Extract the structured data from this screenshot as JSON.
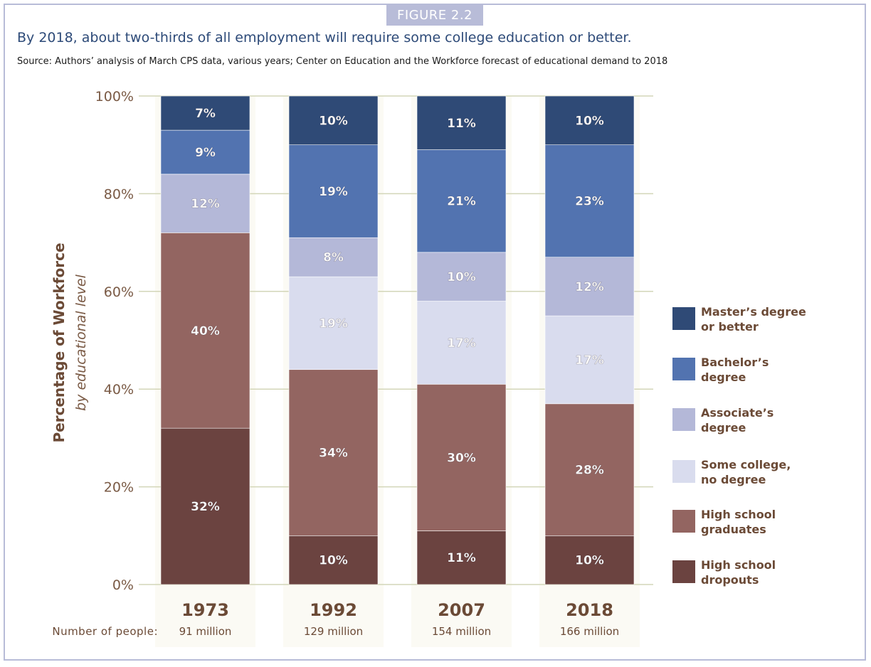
{
  "figure_tag": "FIGURE 2.2",
  "headline": "By 2018, about two-thirds of all employment will require some college education or better.",
  "source": "Source: Authors’ analysis of March CPS data, various years; Center on Education and the Workforce forecast of educational demand to 2018",
  "chart_data": {
    "type": "bar",
    "stacked": true,
    "ylabel": "Percentage of Workforce",
    "ylabel_sub": "by educational level",
    "ylim": [
      0,
      100
    ],
    "yticks": [
      "0%",
      "20%",
      "40%",
      "60%",
      "80%",
      "100%"
    ],
    "ytick_values": [
      0,
      20,
      40,
      60,
      80,
      100
    ],
    "grid": true,
    "legend_position": "right",
    "categories": [
      "1973",
      "1992",
      "2007",
      "2018"
    ],
    "people_label": "Number of people:",
    "people": [
      "91 million",
      "129 million",
      "154 million",
      "166 million"
    ],
    "series": [
      {
        "name": "High school\ndropouts",
        "color": "#6b4340",
        "values": [
          32,
          10,
          11,
          10
        ]
      },
      {
        "name": "High school\ngraduates",
        "color": "#936561",
        "values": [
          40,
          34,
          30,
          28
        ]
      },
      {
        "name": "Some college,\nno degree",
        "color": "#d9dcee",
        "values": [
          0,
          19,
          17,
          17
        ]
      },
      {
        "name": "Associate’s\ndegree",
        "color": "#b4b8d8",
        "values": [
          12,
          8,
          10,
          12
        ]
      },
      {
        "name": "Bachelor’s\ndegree",
        "color": "#5273b0",
        "values": [
          9,
          19,
          21,
          23
        ]
      },
      {
        "name": "Master’s degree\nor better",
        "color": "#2f4a76",
        "values": [
          7,
          10,
          11,
          10
        ]
      }
    ],
    "tops": [
      [
        32,
        72,
        72,
        84,
        93,
        100
      ],
      [
        10,
        44,
        63,
        71,
        90,
        100
      ],
      [
        11,
        41,
        58,
        68,
        89,
        100
      ],
      [
        10,
        37,
        55,
        67,
        90,
        100
      ]
    ],
    "labels": [
      [
        "32%",
        "40%",
        "",
        "12%",
        "9%",
        "7%"
      ],
      [
        "10%",
        "34%",
        "19%",
        "8%",
        "19%",
        "10%"
      ],
      [
        "11%",
        "30%",
        "17%",
        "10%",
        "21%",
        "11%"
      ],
      [
        "10%",
        "28%",
        "17%",
        "12%",
        "23%",
        "10%"
      ]
    ]
  }
}
